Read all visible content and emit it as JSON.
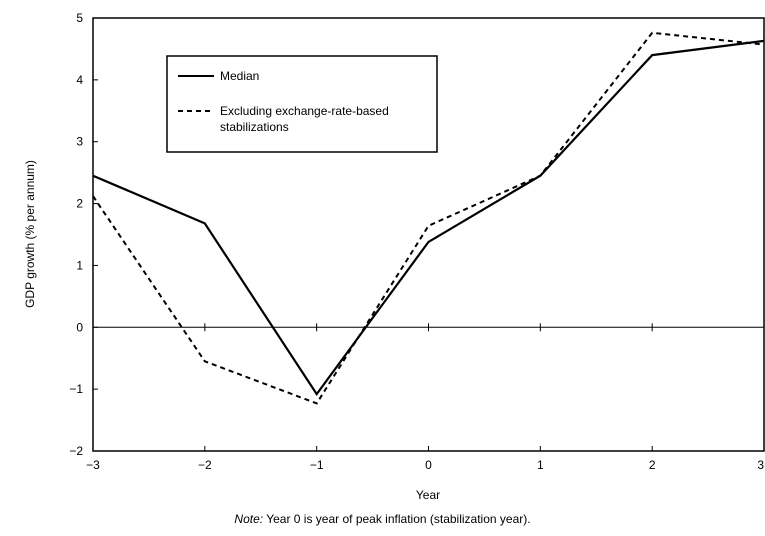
{
  "chart_data": {
    "type": "line",
    "x": [
      -3,
      -2,
      -1,
      0,
      1,
      2,
      3
    ],
    "x_tick_labels": [
      "−3",
      "−2",
      "−1",
      "0",
      "1",
      "2",
      "3"
    ],
    "y_tick_labels": [
      "−2",
      "−1",
      "0",
      "1",
      "2",
      "3",
      "4",
      "5"
    ],
    "xlabel": "Year",
    "ylabel": "GDP growth (% per annum)",
    "xlim": [
      -3,
      3
    ],
    "ylim": [
      -2,
      5
    ],
    "grid": false,
    "zero_line": true,
    "legend_position": "upper-left",
    "series": [
      {
        "name": "Median",
        "style": "solid",
        "values": [
          2.45,
          1.68,
          -1.08,
          1.38,
          2.45,
          4.4,
          4.63
        ]
      },
      {
        "name": "Excluding exchange-rate-based stabilizations",
        "style": "dashed",
        "values": [
          2.12,
          -0.55,
          -1.23,
          1.64,
          2.45,
          4.76,
          4.57
        ]
      }
    ],
    "legend_lines": [
      "Median",
      "Excluding exchange-rate-based",
      "stabilizations"
    ]
  },
  "note": {
    "prefix": "Note:",
    "text": " Year 0 is year of peak inflation (stabilization year)."
  }
}
